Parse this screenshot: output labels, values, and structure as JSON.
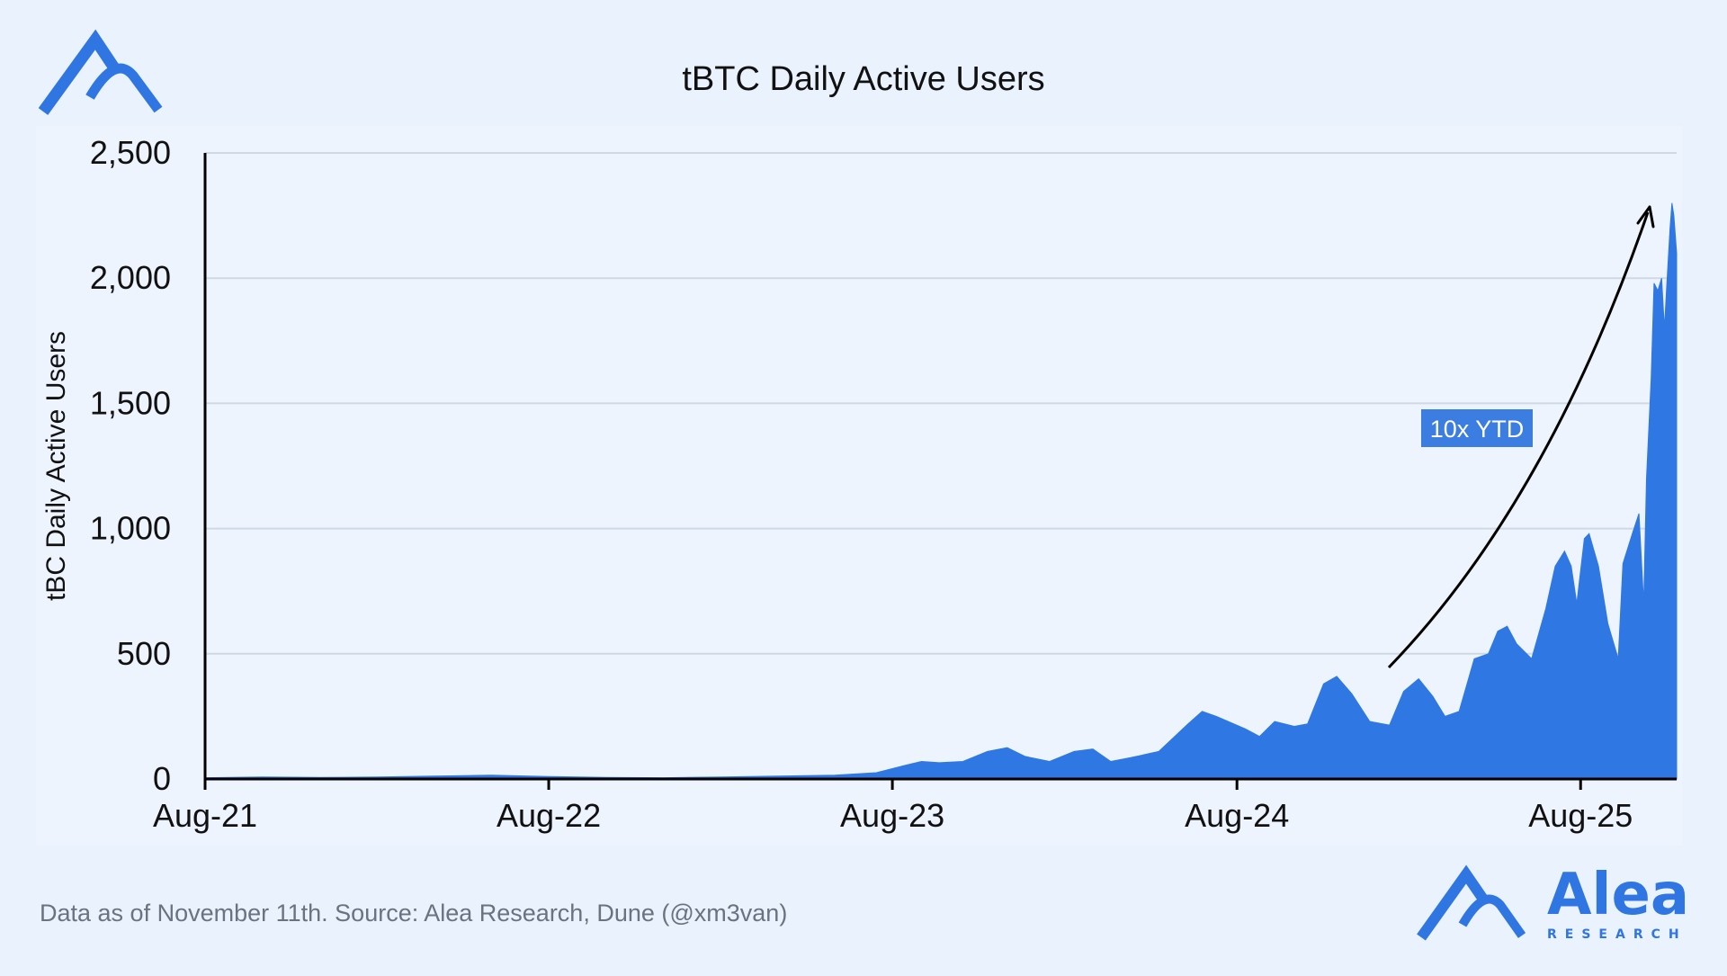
{
  "brand": {
    "name": "Alea",
    "tagline": "RESEARCH",
    "color": "#2f76e3"
  },
  "footer": {
    "source_text": "Data as of November 11th. Source: Alea Research, Dune (@xm3van)"
  },
  "annotation": {
    "label": "10x YTD",
    "color": "#3c7de2"
  },
  "chart_data": {
    "type": "area",
    "title": "tBTC Daily Active Users",
    "xlabel": "",
    "ylabel": "tBC Daily Active Users",
    "x_ticks": [
      "Aug-21",
      "Aug-22",
      "Aug-23",
      "Aug-24",
      "Aug-25"
    ],
    "y_ticks": [
      0,
      500,
      1000,
      1500,
      2000,
      2500
    ],
    "y_tick_labels": [
      "0",
      "500",
      "1,000",
      "1,500",
      "2,000",
      "2,500"
    ],
    "xlim": [
      "2021-08-01",
      "2025-11-11"
    ],
    "ylim": [
      0,
      2500
    ],
    "grid": true,
    "fill_color": "#2f78e4",
    "series": [
      {
        "points": [
          [
            "2021-08-01",
            5
          ],
          [
            "2021-10-01",
            8
          ],
          [
            "2021-12-01",
            6
          ],
          [
            "2022-02-01",
            8
          ],
          [
            "2022-04-01",
            12
          ],
          [
            "2022-06-01",
            15
          ],
          [
            "2022-08-01",
            10
          ],
          [
            "2022-10-01",
            6
          ],
          [
            "2022-12-01",
            5
          ],
          [
            "2023-02-01",
            8
          ],
          [
            "2023-04-01",
            12
          ],
          [
            "2023-06-01",
            15
          ],
          [
            "2023-07-15",
            25
          ],
          [
            "2023-08-15",
            55
          ],
          [
            "2023-09-01",
            70
          ],
          [
            "2023-09-20",
            65
          ],
          [
            "2023-10-15",
            70
          ],
          [
            "2023-11-10",
            110
          ],
          [
            "2023-12-01",
            125
          ],
          [
            "2023-12-20",
            90
          ],
          [
            "2024-01-15",
            70
          ],
          [
            "2024-02-10",
            110
          ],
          [
            "2024-03-01",
            120
          ],
          [
            "2024-03-20",
            70
          ],
          [
            "2024-04-10",
            85
          ],
          [
            "2024-05-10",
            110
          ],
          [
            "2024-06-10",
            220
          ],
          [
            "2024-06-25",
            270
          ],
          [
            "2024-07-10",
            250
          ],
          [
            "2024-08-10",
            200
          ],
          [
            "2024-08-25",
            170
          ],
          [
            "2024-09-10",
            230
          ],
          [
            "2024-10-01",
            210
          ],
          [
            "2024-10-15",
            220
          ],
          [
            "2024-11-01",
            380
          ],
          [
            "2024-11-15",
            410
          ],
          [
            "2024-12-01",
            340
          ],
          [
            "2024-12-20",
            230
          ],
          [
            "2025-01-10",
            215
          ],
          [
            "2025-01-25",
            350
          ],
          [
            "2025-02-10",
            400
          ],
          [
            "2025-02-25",
            330
          ],
          [
            "2025-03-10",
            250
          ],
          [
            "2025-03-25",
            270
          ],
          [
            "2025-04-10",
            480
          ],
          [
            "2025-04-25",
            500
          ],
          [
            "2025-05-05",
            590
          ],
          [
            "2025-05-15",
            610
          ],
          [
            "2025-05-25",
            540
          ],
          [
            "2025-06-10",
            480
          ],
          [
            "2025-06-25",
            680
          ],
          [
            "2025-07-05",
            850
          ],
          [
            "2025-07-15",
            910
          ],
          [
            "2025-07-22",
            850
          ],
          [
            "2025-07-28",
            700
          ],
          [
            "2025-08-05",
            960
          ],
          [
            "2025-08-10",
            980
          ],
          [
            "2025-08-20",
            850
          ],
          [
            "2025-08-30",
            620
          ],
          [
            "2025-09-10",
            480
          ],
          [
            "2025-09-15",
            860
          ],
          [
            "2025-09-25",
            980
          ],
          [
            "2025-10-02",
            1060
          ],
          [
            "2025-10-07",
            700
          ],
          [
            "2025-10-10",
            1200
          ],
          [
            "2025-10-15",
            1600
          ],
          [
            "2025-10-18",
            1980
          ],
          [
            "2025-10-22",
            1950
          ],
          [
            "2025-10-26",
            2000
          ],
          [
            "2025-10-29",
            1800
          ],
          [
            "2025-11-01",
            2000
          ],
          [
            "2025-11-04",
            2200
          ],
          [
            "2025-11-06",
            2300
          ],
          [
            "2025-11-08",
            2250
          ],
          [
            "2025-11-11",
            2100
          ]
        ]
      }
    ]
  }
}
